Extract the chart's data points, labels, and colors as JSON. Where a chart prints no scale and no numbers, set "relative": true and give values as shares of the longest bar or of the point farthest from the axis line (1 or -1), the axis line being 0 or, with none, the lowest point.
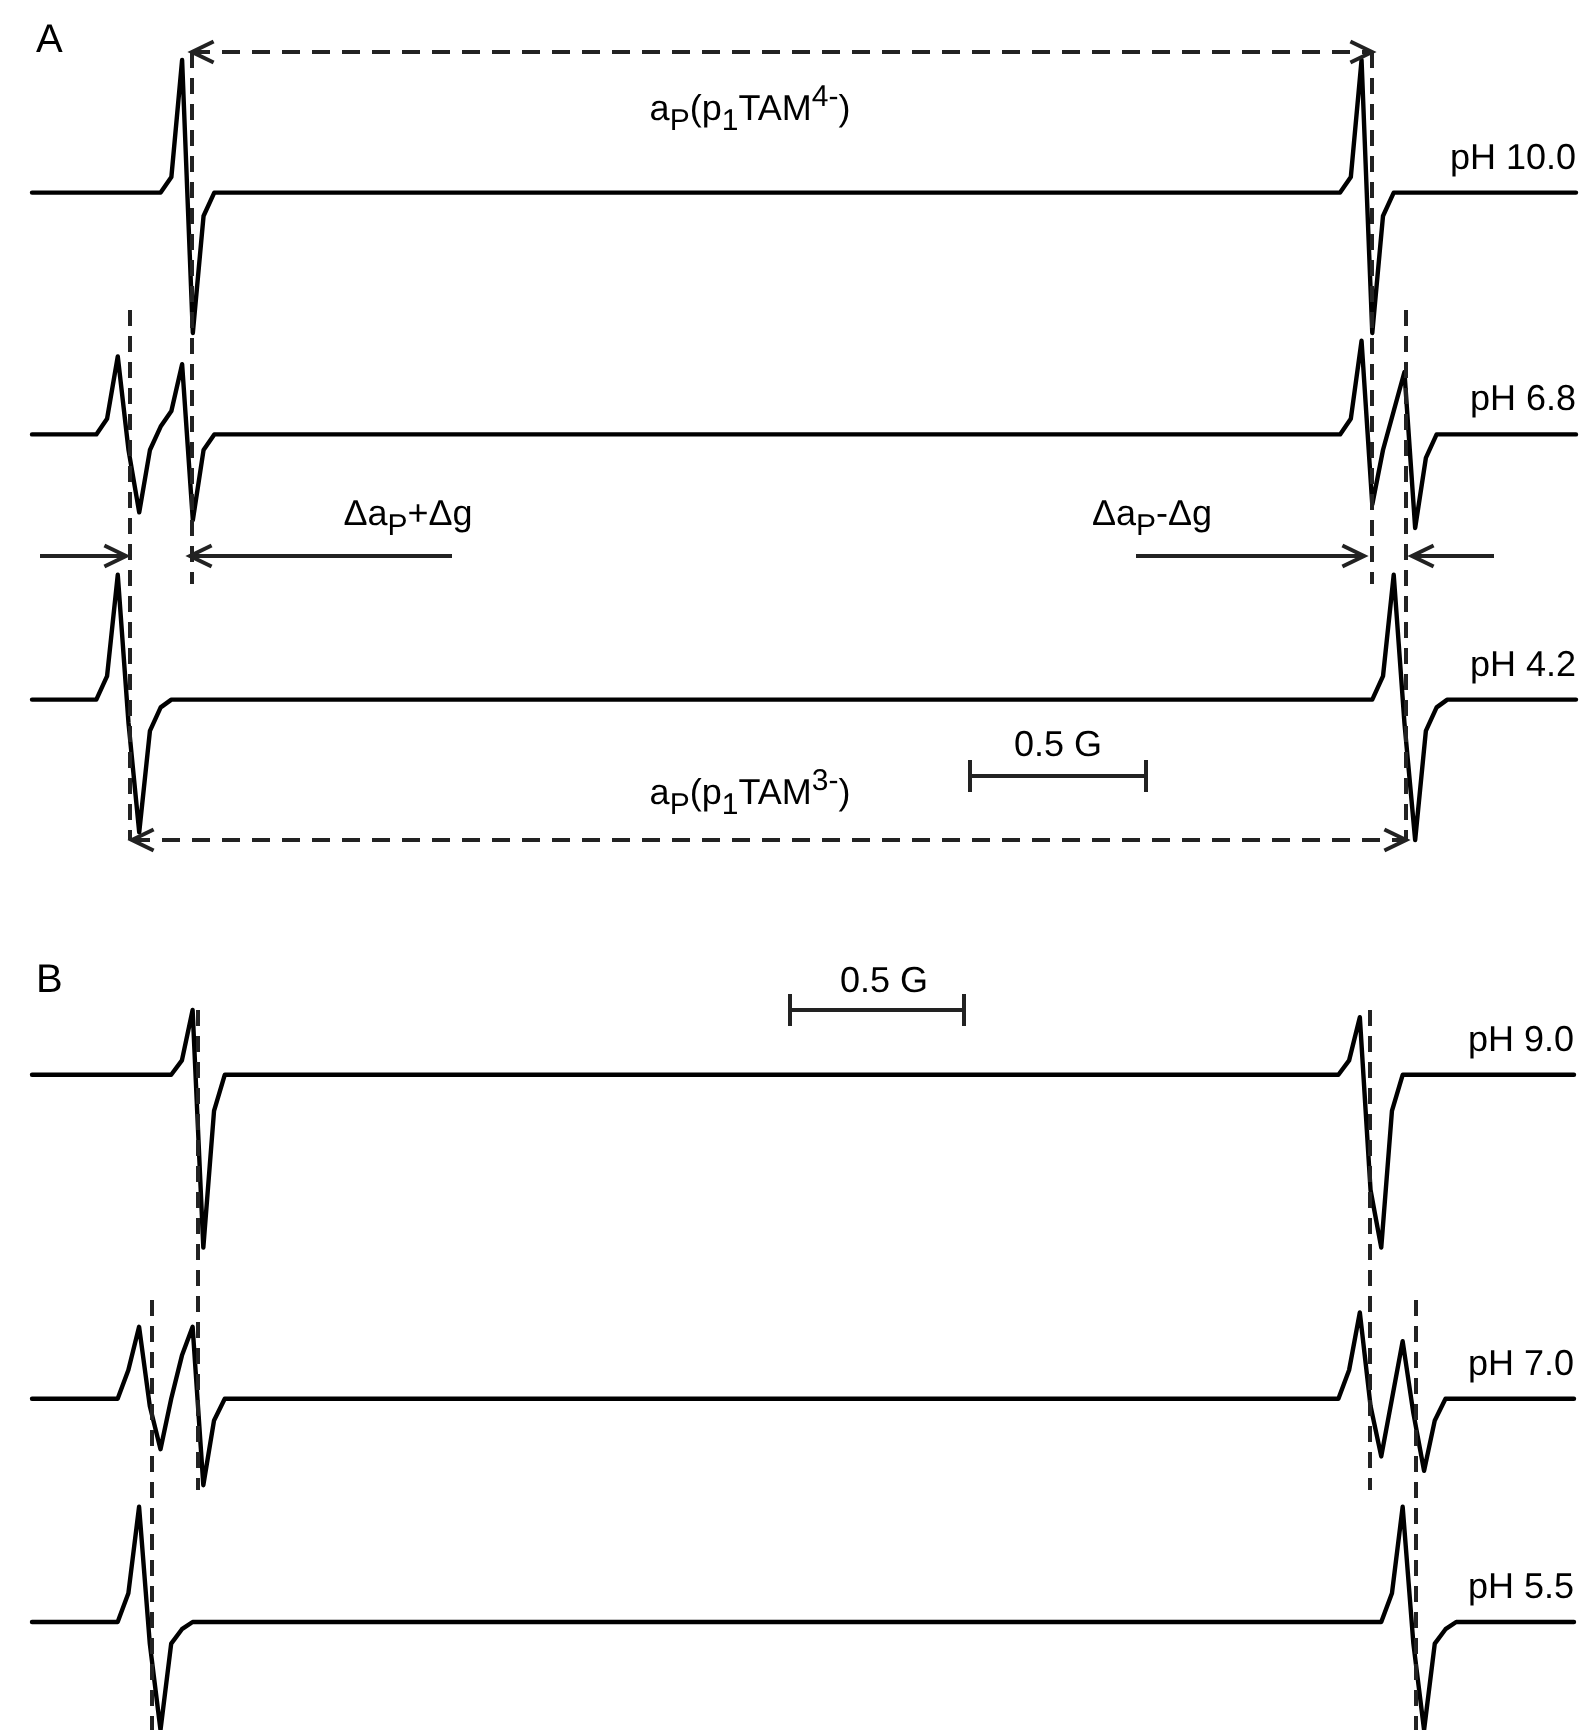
{
  "chart_data": [
    {
      "type": "line",
      "title": "A",
      "relative": true,
      "categories": [
        null,
        null,
        null,
        null,
        null,
        null,
        null,
        null,
        null,
        null,
        null,
        null,
        null,
        null,
        null,
        null,
        null,
        null,
        null,
        null,
        null,
        null,
        null,
        null,
        null,
        null,
        null,
        null,
        null,
        null,
        null,
        null,
        null,
        null,
        null,
        null,
        null,
        null,
        null,
        null,
        null,
        null,
        null,
        null,
        null,
        null,
        null,
        null,
        null,
        null,
        null,
        null,
        null,
        null,
        null,
        null,
        null,
        null,
        null,
        null,
        null,
        null,
        null,
        null,
        null,
        null,
        null,
        null,
        null,
        null,
        null,
        null,
        null,
        null,
        null,
        null,
        null,
        null,
        null,
        null,
        null,
        null,
        null,
        null,
        null,
        null,
        null,
        null,
        null,
        null,
        null,
        null,
        null,
        null,
        null,
        null,
        null,
        null,
        null,
        null,
        null,
        null,
        null,
        null,
        null,
        null,
        null,
        null,
        null,
        null,
        null,
        null,
        null,
        null,
        null,
        null,
        null,
        null,
        null,
        null,
        null,
        null,
        null,
        null,
        null,
        null,
        null,
        null,
        null,
        null,
        null,
        null,
        null,
        null,
        null,
        null,
        null,
        null,
        null,
        null,
        null,
        null,
        null,
        null,
        null
      ],
      "series": [
        {
          "name": "pH 10.0",
          "color": "#000000",
          "values": [
            0.83,
            0.83,
            0.83,
            0.83,
            0.83,
            0.83,
            0.83,
            0.83,
            0.83,
            0.83,
            0.83,
            0.83,
            0.83,
            0.85,
            1.0,
            0.65,
            0.8,
            0.83,
            0.83,
            0.83,
            0.83,
            0.83,
            0.83,
            0.83,
            0.83,
            0.83,
            0.83,
            0.83,
            0.83,
            0.83,
            0.83,
            0.83,
            0.83,
            0.83,
            0.83,
            0.83,
            0.83,
            0.83,
            0.83,
            0.83,
            0.83,
            0.83,
            0.83,
            0.83,
            0.83,
            0.83,
            0.83,
            0.83,
            0.83,
            0.83,
            0.83,
            0.83,
            0.83,
            0.83,
            0.83,
            0.83,
            0.83,
            0.83,
            0.83,
            0.83,
            0.83,
            0.83,
            0.83,
            0.83,
            0.83,
            0.83,
            0.83,
            0.83,
            0.83,
            0.83,
            0.83,
            0.83,
            0.83,
            0.83,
            0.83,
            0.83,
            0.83,
            0.83,
            0.83,
            0.83,
            0.83,
            0.83,
            0.83,
            0.83,
            0.83,
            0.83,
            0.83,
            0.83,
            0.83,
            0.83,
            0.83,
            0.83,
            0.83,
            0.83,
            0.83,
            0.83,
            0.83,
            0.83,
            0.83,
            0.83,
            0.83,
            0.83,
            0.83,
            0.83,
            0.83,
            0.83,
            0.83,
            0.83,
            0.83,
            0.83,
            0.83,
            0.83,
            0.83,
            0.83,
            0.83,
            0.83,
            0.83,
            0.83,
            0.83,
            0.83,
            0.83,
            0.83,
            0.83,
            0.85,
            1.0,
            0.65,
            0.8,
            0.83,
            0.83,
            0.83,
            0.83,
            0.83,
            0.83,
            0.83,
            0.83,
            0.83,
            0.83,
            0.83,
            0.83,
            0.83,
            0.83,
            0.83,
            0.83,
            0.83,
            0.83
          ]
        },
        {
          "name": "pH 6.8",
          "color": "#000000",
          "values": [
            0.52,
            0.52,
            0.52,
            0.52,
            0.52,
            0.52,
            0.52,
            0.54,
            0.62,
            0.5,
            0.42,
            0.5,
            0.53,
            0.55,
            0.61,
            0.41,
            0.5,
            0.52,
            0.52,
            0.52,
            0.52,
            0.52,
            0.52,
            0.52,
            0.52,
            0.52,
            0.52,
            0.52,
            0.52,
            0.52,
            0.52,
            0.52,
            0.52,
            0.52,
            0.52,
            0.52,
            0.52,
            0.52,
            0.52,
            0.52,
            0.52,
            0.52,
            0.52,
            0.52,
            0.52,
            0.52,
            0.52,
            0.52,
            0.52,
            0.52,
            0.52,
            0.52,
            0.52,
            0.52,
            0.52,
            0.52,
            0.52,
            0.52,
            0.52,
            0.52,
            0.52,
            0.52,
            0.52,
            0.52,
            0.52,
            0.52,
            0.52,
            0.52,
            0.52,
            0.52,
            0.52,
            0.52,
            0.52,
            0.52,
            0.52,
            0.52,
            0.52,
            0.52,
            0.52,
            0.52,
            0.52,
            0.52,
            0.52,
            0.52,
            0.52,
            0.52,
            0.52,
            0.52,
            0.52,
            0.52,
            0.52,
            0.52,
            0.52,
            0.52,
            0.52,
            0.52,
            0.52,
            0.52,
            0.52,
            0.52,
            0.52,
            0.52,
            0.52,
            0.52,
            0.52,
            0.52,
            0.52,
            0.52,
            0.52,
            0.52,
            0.52,
            0.52,
            0.52,
            0.52,
            0.52,
            0.52,
            0.52,
            0.52,
            0.52,
            0.52,
            0.52,
            0.52,
            0.52,
            0.54,
            0.64,
            0.43,
            0.5,
            0.55,
            0.6,
            0.4,
            0.49,
            0.52,
            0.52,
            0.52,
            0.52,
            0.52,
            0.52,
            0.52,
            0.52,
            0.52,
            0.52,
            0.52,
            0.52,
            0.52,
            0.52
          ]
        },
        {
          "name": "pH 4.2",
          "color": "#000000",
          "values": [
            0.18,
            0.18,
            0.18,
            0.18,
            0.18,
            0.18,
            0.18,
            0.21,
            0.34,
            0.15,
            0.01,
            0.14,
            0.17,
            0.18,
            0.18,
            0.18,
            0.18,
            0.18,
            0.18,
            0.18,
            0.18,
            0.18,
            0.18,
            0.18,
            0.18,
            0.18,
            0.18,
            0.18,
            0.18,
            0.18,
            0.18,
            0.18,
            0.18,
            0.18,
            0.18,
            0.18,
            0.18,
            0.18,
            0.18,
            0.18,
            0.18,
            0.18,
            0.18,
            0.18,
            0.18,
            0.18,
            0.18,
            0.18,
            0.18,
            0.18,
            0.18,
            0.18,
            0.18,
            0.18,
            0.18,
            0.18,
            0.18,
            0.18,
            0.18,
            0.18,
            0.18,
            0.18,
            0.18,
            0.18,
            0.18,
            0.18,
            0.18,
            0.18,
            0.18,
            0.18,
            0.18,
            0.18,
            0.18,
            0.18,
            0.18,
            0.18,
            0.18,
            0.18,
            0.18,
            0.18,
            0.18,
            0.18,
            0.18,
            0.18,
            0.18,
            0.18,
            0.18,
            0.18,
            0.18,
            0.18,
            0.18,
            0.18,
            0.18,
            0.18,
            0.18,
            0.18,
            0.18,
            0.18,
            0.18,
            0.18,
            0.18,
            0.18,
            0.18,
            0.18,
            0.18,
            0.18,
            0.18,
            0.18,
            0.18,
            0.18,
            0.18,
            0.18,
            0.18,
            0.18,
            0.18,
            0.18,
            0.18,
            0.18,
            0.18,
            0.18,
            0.18,
            0.18,
            0.18,
            0.18,
            0.18,
            0.18,
            0.21,
            0.34,
            0.15,
            0,
            0.14,
            0.17,
            0.18,
            0.18,
            0.18,
            0.18,
            0.18,
            0.18,
            0.18,
            0.18,
            0.18,
            0.18,
            0.18,
            0.18,
            0.18
          ]
        }
      ],
      "annotations": [
        "a$_{P}$(p$_{1}$TAM$^{4-}$)",
        "Δa$_{P}$+Δg",
        "Δa$_{P}$-Δg",
        "a$_{P}$(p$_{1}$TAM$^{3-}$)",
        "0.5 G"
      ]
    },
    {
      "type": "line",
      "title": "B",
      "relative": true,
      "categories": [
        null,
        null,
        null,
        null,
        null,
        null,
        null,
        null,
        null,
        null,
        null,
        null,
        null,
        null,
        null,
        null,
        null,
        null,
        null,
        null,
        null,
        null,
        null,
        null,
        null,
        null,
        null,
        null,
        null,
        null,
        null,
        null,
        null,
        null,
        null,
        null,
        null,
        null,
        null,
        null,
        null,
        null,
        null,
        null,
        null,
        null,
        null,
        null,
        null,
        null,
        null,
        null,
        null,
        null,
        null,
        null,
        null,
        null,
        null,
        null,
        null,
        null,
        null,
        null,
        null,
        null,
        null,
        null,
        null,
        null,
        null,
        null,
        null,
        null,
        null,
        null,
        null,
        null,
        null,
        null,
        null,
        null,
        null,
        null,
        null,
        null,
        null,
        null,
        null,
        null,
        null,
        null,
        null,
        null,
        null,
        null,
        null,
        null,
        null,
        null,
        null,
        null,
        null,
        null,
        null,
        null,
        null,
        null,
        null,
        null,
        null,
        null,
        null,
        null,
        null,
        null,
        null,
        null,
        null,
        null,
        null,
        null,
        null,
        null,
        null,
        null,
        null,
        null,
        null,
        null,
        null,
        null,
        null,
        null,
        null,
        null,
        null,
        null,
        null,
        null,
        null,
        null,
        null,
        null,
        null
      ],
      "series": [
        {
          "name": "pH 9.0",
          "color": "#000000",
          "values": [
            0.91,
            0.91,
            0.91,
            0.91,
            0.91,
            0.91,
            0.91,
            0.91,
            0.91,
            0.91,
            0.91,
            0.91,
            0.91,
            0.91,
            0.93,
            1.0,
            0.67,
            0.86,
            0.91,
            0.91,
            0.91,
            0.91,
            0.91,
            0.91,
            0.91,
            0.91,
            0.91,
            0.91,
            0.91,
            0.91,
            0.91,
            0.91,
            0.91,
            0.91,
            0.91,
            0.91,
            0.91,
            0.91,
            0.91,
            0.91,
            0.91,
            0.91,
            0.91,
            0.91,
            0.91,
            0.91,
            0.91,
            0.91,
            0.91,
            0.91,
            0.91,
            0.91,
            0.91,
            0.91,
            0.91,
            0.91,
            0.91,
            0.91,
            0.91,
            0.91,
            0.91,
            0.91,
            0.91,
            0.91,
            0.91,
            0.91,
            0.91,
            0.91,
            0.91,
            0.91,
            0.91,
            0.91,
            0.91,
            0.91,
            0.91,
            0.91,
            0.91,
            0.91,
            0.91,
            0.91,
            0.91,
            0.91,
            0.91,
            0.91,
            0.91,
            0.91,
            0.91,
            0.91,
            0.91,
            0.91,
            0.91,
            0.91,
            0.91,
            0.91,
            0.91,
            0.91,
            0.91,
            0.91,
            0.91,
            0.91,
            0.91,
            0.91,
            0.91,
            0.91,
            0.91,
            0.91,
            0.91,
            0.91,
            0.91,
            0.91,
            0.91,
            0.91,
            0.91,
            0.91,
            0.91,
            0.91,
            0.91,
            0.91,
            0.91,
            0.91,
            0.91,
            0.91,
            0.91,
            0.93,
            0.99,
            0.75,
            0.67,
            0.86,
            0.91,
            0.91,
            0.91,
            0.91,
            0.91,
            0.91,
            0.91,
            0.91,
            0.91,
            0.91,
            0.91,
            0.91,
            0.91,
            0.91,
            0.91,
            0.91,
            0.91
          ]
        },
        {
          "name": "pH 7.0",
          "color": "#000000",
          "values": [
            0.46,
            0.46,
            0.46,
            0.46,
            0.46,
            0.46,
            0.46,
            0.46,
            0.46,
            0.5,
            0.56,
            0.45,
            0.39,
            0.46,
            0.52,
            0.56,
            0.34,
            0.43,
            0.46,
            0.46,
            0.46,
            0.46,
            0.46,
            0.46,
            0.46,
            0.46,
            0.46,
            0.46,
            0.46,
            0.46,
            0.46,
            0.46,
            0.46,
            0.46,
            0.46,
            0.46,
            0.46,
            0.46,
            0.46,
            0.46,
            0.46,
            0.46,
            0.46,
            0.46,
            0.46,
            0.46,
            0.46,
            0.46,
            0.46,
            0.46,
            0.46,
            0.46,
            0.46,
            0.46,
            0.46,
            0.46,
            0.46,
            0.46,
            0.46,
            0.46,
            0.46,
            0.46,
            0.46,
            0.46,
            0.46,
            0.46,
            0.46,
            0.46,
            0.46,
            0.46,
            0.46,
            0.46,
            0.46,
            0.46,
            0.46,
            0.46,
            0.46,
            0.46,
            0.46,
            0.46,
            0.46,
            0.46,
            0.46,
            0.46,
            0.46,
            0.46,
            0.46,
            0.46,
            0.46,
            0.46,
            0.46,
            0.46,
            0.46,
            0.46,
            0.46,
            0.46,
            0.46,
            0.46,
            0.46,
            0.46,
            0.46,
            0.46,
            0.46,
            0.46,
            0.46,
            0.46,
            0.46,
            0.46,
            0.46,
            0.46,
            0.46,
            0.46,
            0.46,
            0.46,
            0.46,
            0.46,
            0.46,
            0.46,
            0.46,
            0.46,
            0.46,
            0.46,
            0.46,
            0.5,
            0.58,
            0.45,
            0.38,
            0.46,
            0.54,
            0.44,
            0.36,
            0.43,
            0.46,
            0.46,
            0.46,
            0.46,
            0.46,
            0.46,
            0.46,
            0.46,
            0.46,
            0.46,
            0.46,
            0.46,
            0.46
          ]
        },
        {
          "name": "pH 5.5",
          "color": "#000000",
          "values": [
            0.15,
            0.15,
            0.15,
            0.15,
            0.15,
            0.15,
            0.15,
            0.15,
            0.15,
            0.19,
            0.31,
            0.12,
            0,
            0.12,
            0.14,
            0.15,
            0.15,
            0.15,
            0.15,
            0.15,
            0.15,
            0.15,
            0.15,
            0.15,
            0.15,
            0.15,
            0.15,
            0.15,
            0.15,
            0.15,
            0.15,
            0.15,
            0.15,
            0.15,
            0.15,
            0.15,
            0.15,
            0.15,
            0.15,
            0.15,
            0.15,
            0.15,
            0.15,
            0.15,
            0.15,
            0.15,
            0.15,
            0.15,
            0.15,
            0.15,
            0.15,
            0.15,
            0.15,
            0.15,
            0.15,
            0.15,
            0.15,
            0.15,
            0.15,
            0.15,
            0.15,
            0.15,
            0.15,
            0.15,
            0.15,
            0.15,
            0.15,
            0.15,
            0.15,
            0.15,
            0.15,
            0.15,
            0.15,
            0.15,
            0.15,
            0.15,
            0.15,
            0.15,
            0.15,
            0.15,
            0.15,
            0.15,
            0.15,
            0.15,
            0.15,
            0.15,
            0.15,
            0.15,
            0.15,
            0.15,
            0.15,
            0.15,
            0.15,
            0.15,
            0.15,
            0.15,
            0.15,
            0.15,
            0.15,
            0.15,
            0.15,
            0.15,
            0.15,
            0.15,
            0.15,
            0.15,
            0.15,
            0.15,
            0.15,
            0.15,
            0.15,
            0.15,
            0.15,
            0.15,
            0.15,
            0.15,
            0.15,
            0.15,
            0.15,
            0.15,
            0.15,
            0.15,
            0.15,
            0.15,
            0.15,
            0.15,
            0.15,
            0.19,
            0.31,
            0.12,
            0,
            0.12,
            0.14,
            0.15,
            0.15,
            0.15,
            0.15,
            0.15,
            0.15,
            0.15,
            0.15,
            0.15,
            0.15,
            0.15,
            0.15
          ]
        }
      ],
      "annotations": [
        "0.5 G"
      ]
    }
  ]
}
